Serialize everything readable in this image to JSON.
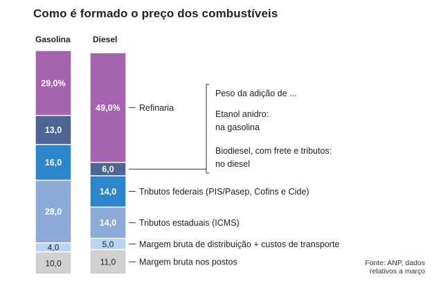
{
  "title": "Como é formado o preço dos combustíveis",
  "colors": {
    "refinaria": "#a664ae",
    "etanol": "#4e6495",
    "biodiesel": "#4e6495",
    "federais": "#2d86cc",
    "estaduais": "#8dabd9",
    "distribuicao": "#bad5ef",
    "postos": "#d0d0d0",
    "label_light": "#ffffff",
    "label_dark": "#222222"
  },
  "chart_data": {
    "type": "bar",
    "stacked": true,
    "categories": [
      "Gasolina",
      "Diesel"
    ],
    "series": [
      {
        "key": "postos",
        "name": "Margem bruta nos postos",
        "values": [
          10.0,
          11.0
        ],
        "labels": [
          "10,0",
          "11,0"
        ]
      },
      {
        "key": "distribuicao",
        "name": "Margem bruta de distribuição + custos de transporte",
        "values": [
          4.0,
          5.0
        ],
        "labels": [
          "4,0",
          "5,0"
        ]
      },
      {
        "key": "estaduais",
        "name": "Tributos estaduais (ICMS)",
        "values": [
          28.0,
          14.0
        ],
        "labels": [
          "28,0",
          "14,0"
        ]
      },
      {
        "key": "federais",
        "name": "Tributos federais (PIS/Pasep, Cofins e Cide)",
        "values": [
          16.0,
          14.0
        ],
        "labels": [
          "16,0",
          "14,0"
        ]
      },
      {
        "key": "etanol",
        "name": "",
        "values": [
          13.0,
          0
        ],
        "labels": [
          "13,0",
          ""
        ]
      },
      {
        "key": "biodiesel",
        "name": "",
        "values": [
          0,
          6.0
        ],
        "labels": [
          "",
          "6,0"
        ]
      },
      {
        "key": "refinaria",
        "name": "Refinaria",
        "values": [
          29.0,
          49.0
        ],
        "labels": [
          "29,0%",
          "49,0%"
        ]
      }
    ],
    "annotation": {
      "heading": "Peso da adição de ...",
      "etanol_line1": "Etanol anidro:",
      "etanol_line2": "na gasolina",
      "biodiesel_line1": "Biodiesel, com frete e tributos:",
      "biodiesel_line2": "no diesel"
    },
    "ylim": [
      0,
      100
    ]
  },
  "source": "Fonte: ANP, dados relativos a março"
}
